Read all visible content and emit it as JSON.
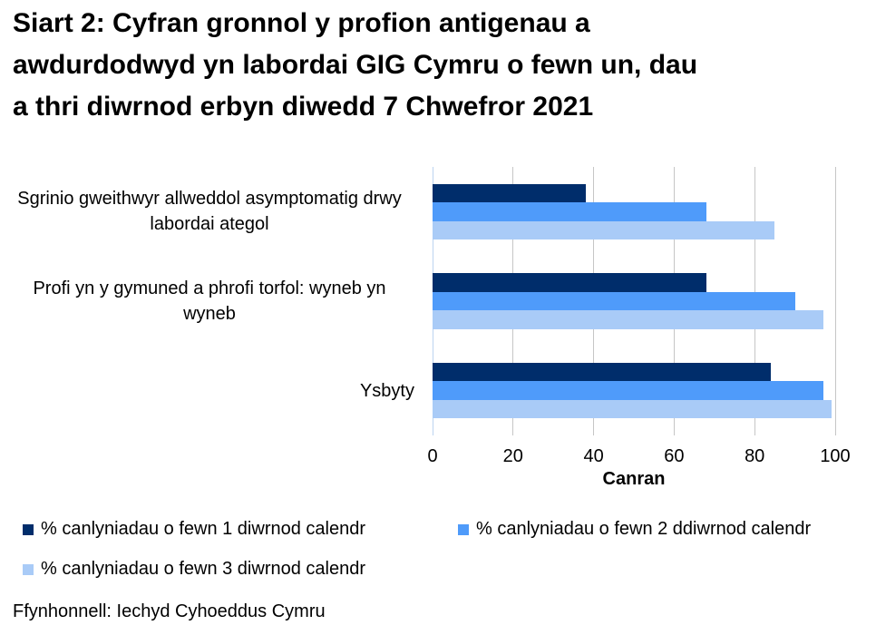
{
  "header": {
    "title_lines": [
      "Siart 2: Cyfran gronnol y profion antigenau a",
      "awdurdodwyd yn labordai GIG Cymru o fewn un, dau",
      "a thri diwrnod erbyn diwedd 7 Chwefror 2021"
    ]
  },
  "chart_data": {
    "type": "bar",
    "orientation": "horizontal",
    "categories": [
      "Sgrinio gweithwyr allweddol asymptomatig drwy labordai ategol",
      "Profi yn y gymuned a phrofi torfol: wyneb yn wyneb",
      "Ysbyty"
    ],
    "series": [
      {
        "name": "% canlyniadau o fewn 1 diwrnod calendr",
        "color": "#002D6B",
        "values": [
          38,
          68,
          84
        ]
      },
      {
        "name": "% canlyniadau o fewn 2 ddiwrnod calendr",
        "color": "#4F9BFA",
        "values": [
          68,
          90,
          97
        ]
      },
      {
        "name": "% canlyniadau o fewn 3 diwrnod calendr",
        "color": "#A9CBF7",
        "values": [
          85,
          97,
          99
        ]
      }
    ],
    "xlabel": "Canran",
    "xlim": [
      0,
      100
    ],
    "xticks": [
      0,
      20,
      40,
      60,
      80,
      100
    ],
    "grid": true,
    "legend_position": "bottom"
  },
  "colors": {
    "gridline": "#C6C6C6",
    "zero_line": "#BCD4F0",
    "text": "#000000",
    "background": "#FFFFFF"
  },
  "footer": {
    "source": "Ffynhonnell: Iechyd Cyhoeddus Cymru"
  }
}
